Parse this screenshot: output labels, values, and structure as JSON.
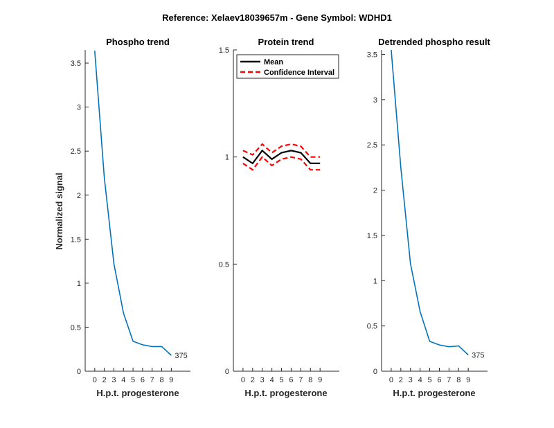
{
  "figure": {
    "suptitle": "Reference:  Xelaev18039657m - Gene Symbol:  WDHD1"
  },
  "colors": {
    "phospho_line": "#0072BD",
    "mean_line": "#000000",
    "ci_line": "#FF0000",
    "axis": "#262626"
  },
  "chart_data": [
    {
      "type": "line",
      "title": "Phospho trend",
      "xlabel": "H.p.t. progesterone",
      "ylabel": "Normalized signal",
      "xlim": [
        -1,
        10
      ],
      "ylim": [
        0,
        3.65
      ],
      "xticks": [
        "0",
        "2",
        "3",
        "4",
        "5",
        "6",
        "7",
        "8",
        "9"
      ],
      "yticks": [
        "0",
        "0.5",
        "1",
        "1.5",
        "2",
        "2.5",
        "3",
        "3.5"
      ],
      "ytick_values": [
        0,
        0.5,
        1,
        1.5,
        2,
        2.5,
        3,
        3.5
      ],
      "series": [
        {
          "x": [
            0,
            1,
            2,
            3,
            4,
            5,
            6,
            7,
            8
          ],
          "values": [
            3.64,
            2.2,
            1.22,
            0.66,
            0.34,
            0.3,
            0.28,
            0.28,
            0.18
          ]
        }
      ],
      "annotation": "375"
    },
    {
      "type": "line",
      "title": "Protein trend",
      "xlabel": "H.p.t. progesterone",
      "ylabel": "",
      "xlim": [
        -1,
        10
      ],
      "ylim": [
        0,
        1.5
      ],
      "xticks": [
        "0",
        "2",
        "3",
        "4",
        "5",
        "6",
        "7",
        "8",
        "9"
      ],
      "yticks": [
        "0",
        "0.5",
        "1",
        "1.5"
      ],
      "ytick_values": [
        0,
        0.5,
        1,
        1.5
      ],
      "legend": {
        "position": "top-left",
        "entries": [
          "Mean",
          "Confidence Interval"
        ]
      },
      "series": [
        {
          "name": "Mean",
          "x": [
            0,
            1,
            2,
            3,
            4,
            5,
            6,
            7,
            8
          ],
          "values": [
            1.0,
            0.97,
            1.03,
            0.99,
            1.02,
            1.03,
            1.02,
            0.97,
            0.97
          ]
        },
        {
          "name": "Confidence Interval",
          "x": [
            0,
            1,
            2,
            3,
            4,
            5,
            6,
            7,
            8
          ],
          "values": [
            1.03,
            1.01,
            1.06,
            1.02,
            1.05,
            1.06,
            1.05,
            1.0,
            1.0
          ]
        },
        {
          "name": "Confidence Interval",
          "x": [
            0,
            1,
            2,
            3,
            4,
            5,
            6,
            7,
            8
          ],
          "values": [
            0.97,
            0.94,
            1.0,
            0.96,
            0.99,
            1.0,
            0.99,
            0.94,
            0.94
          ]
        }
      ]
    },
    {
      "type": "line",
      "title": "Detrended phospho result",
      "xlabel": "H.p.t. progesterone",
      "ylabel": "",
      "xlim": [
        -1,
        10
      ],
      "ylim": [
        0,
        3.55
      ],
      "xticks": [
        "0",
        "2",
        "3",
        "4",
        "5",
        "6",
        "7",
        "8",
        "9"
      ],
      "yticks": [
        "0",
        "0.5",
        "1",
        "1.5",
        "2",
        "2.5",
        "3",
        "3.5"
      ],
      "ytick_values": [
        0,
        0.5,
        1,
        1.5,
        2,
        2.5,
        3,
        3.5
      ],
      "series": [
        {
          "x": [
            0,
            1,
            2,
            3,
            4,
            5,
            6,
            7,
            8
          ],
          "values": [
            3.55,
            2.25,
            1.19,
            0.66,
            0.33,
            0.29,
            0.27,
            0.28,
            0.18
          ]
        }
      ],
      "annotation": "375"
    }
  ]
}
